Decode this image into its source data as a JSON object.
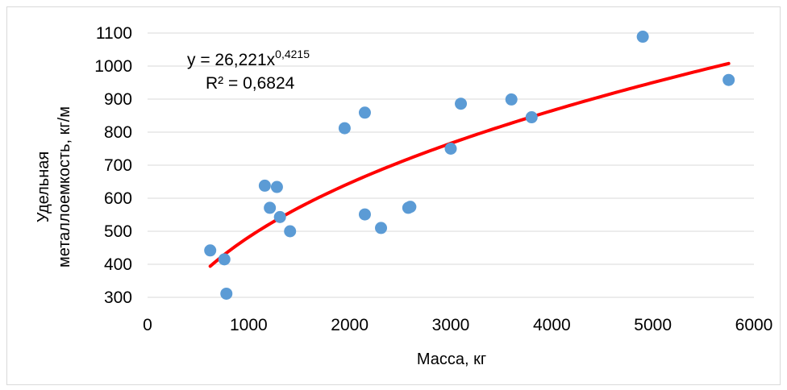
{
  "chart_data": {
    "type": "scatter",
    "xlabel": "Масса, кг",
    "ylabel_line1": "Удельная",
    "ylabel_line2": "металлоемкость, кг/м",
    "xlim": [
      0,
      6000
    ],
    "ylim": [
      300,
      1100
    ],
    "xticks": [
      "0",
      "1000",
      "2000",
      "3000",
      "4000",
      "5000",
      "6000"
    ],
    "yticks": [
      "300",
      "400",
      "500",
      "600",
      "700",
      "800",
      "900",
      "1000",
      "1100"
    ],
    "grid": "horizontal",
    "point_color": "#5b9bd5",
    "trend_color": "#ff0000",
    "points": [
      {
        "x": 620,
        "y": 442
      },
      {
        "x": 760,
        "y": 415
      },
      {
        "x": 780,
        "y": 311
      },
      {
        "x": 1160,
        "y": 638
      },
      {
        "x": 1210,
        "y": 571
      },
      {
        "x": 1280,
        "y": 634
      },
      {
        "x": 1310,
        "y": 543
      },
      {
        "x": 1410,
        "y": 500
      },
      {
        "x": 1950,
        "y": 812
      },
      {
        "x": 2150,
        "y": 859
      },
      {
        "x": 2150,
        "y": 551
      },
      {
        "x": 2310,
        "y": 510
      },
      {
        "x": 2580,
        "y": 571
      },
      {
        "x": 2600,
        "y": 574
      },
      {
        "x": 3000,
        "y": 750
      },
      {
        "x": 3100,
        "y": 886
      },
      {
        "x": 3600,
        "y": 899
      },
      {
        "x": 3800,
        "y": 845
      },
      {
        "x": 4900,
        "y": 1089
      },
      {
        "x": 5750,
        "y": 958
      }
    ],
    "trendline": {
      "type": "power",
      "a": 26.221,
      "b": 0.4215,
      "x_range": [
        620,
        5750
      ],
      "equation_base": "y = 26,221x",
      "equation_exp": "0,4215",
      "r2": "R² = 0,6824"
    }
  }
}
